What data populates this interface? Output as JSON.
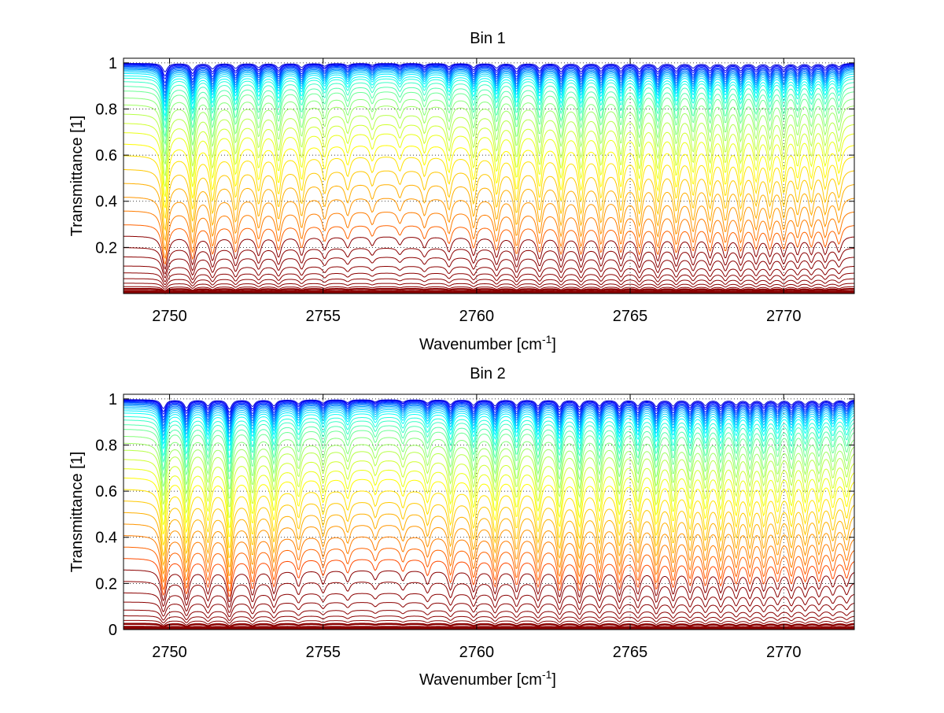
{
  "chart_data": [
    {
      "type": "line",
      "title": "Bin 1",
      "xlabel": "Wavenumber [cm",
      "xlabel_sup": "-1",
      "xlabel_tail": "]",
      "ylabel": "Transmittance [1]",
      "xlim": [
        2748.5,
        2772.3
      ],
      "ylim": [
        0,
        1.02
      ],
      "xticks": [
        2750,
        2755,
        2760,
        2765,
        2770
      ],
      "xtick_labels": [
        "2750",
        "2755",
        "2760",
        "2765",
        "2770"
      ],
      "yticks": [
        0.2,
        0.4,
        0.6,
        0.8,
        1
      ],
      "ytick_labels": [
        "0.2",
        "0.4",
        "0.6",
        "0.8",
        "1"
      ],
      "grid": "dotted",
      "series_count": 40,
      "colormap": "jet, dark red for strongest absorption to blue for weakest",
      "series_baselines": [
        0.005,
        0.01,
        0.02,
        0.03,
        0.045,
        0.065,
        0.09,
        0.12,
        0.16,
        0.2,
        0.25,
        0.3,
        0.36,
        0.42,
        0.48,
        0.54,
        0.6,
        0.65,
        0.7,
        0.74,
        0.78,
        0.82,
        0.85,
        0.88,
        0.9,
        0.92,
        0.935,
        0.945,
        0.955,
        0.962,
        0.968,
        0.973,
        0.977,
        0.981,
        0.985,
        0.988,
        0.991,
        0.994,
        0.996,
        0.998
      ],
      "absorption_lines": [
        {
          "x": 2749.85,
          "depth": 0.95
        },
        {
          "x": 2750.75,
          "depth": 0.75
        },
        {
          "x": 2751.4,
          "depth": 0.6
        },
        {
          "x": 2752.15,
          "depth": 0.55
        },
        {
          "x": 2752.9,
          "depth": 0.45
        },
        {
          "x": 2753.55,
          "depth": 0.5
        },
        {
          "x": 2754.3,
          "depth": 0.45
        },
        {
          "x": 2755.05,
          "depth": 0.3
        },
        {
          "x": 2755.8,
          "depth": 0.25
        },
        {
          "x": 2756.6,
          "depth": 0.2
        },
        {
          "x": 2757.5,
          "depth": 0.18
        },
        {
          "x": 2758.3,
          "depth": 0.25
        },
        {
          "x": 2759.1,
          "depth": 0.35
        },
        {
          "x": 2759.9,
          "depth": 0.45
        },
        {
          "x": 2760.65,
          "depth": 0.5
        },
        {
          "x": 2761.3,
          "depth": 0.6
        },
        {
          "x": 2762.05,
          "depth": 0.55
        },
        {
          "x": 2762.75,
          "depth": 0.6
        },
        {
          "x": 2763.4,
          "depth": 0.6
        },
        {
          "x": 2764.05,
          "depth": 0.55
        },
        {
          "x": 2764.7,
          "depth": 0.55
        },
        {
          "x": 2765.3,
          "depth": 0.6
        },
        {
          "x": 2765.9,
          "depth": 0.6
        },
        {
          "x": 2766.5,
          "depth": 0.55
        },
        {
          "x": 2767.05,
          "depth": 0.5
        },
        {
          "x": 2767.6,
          "depth": 0.5
        },
        {
          "x": 2768.1,
          "depth": 0.5
        },
        {
          "x": 2768.6,
          "depth": 0.5
        },
        {
          "x": 2769.1,
          "depth": 0.45
        },
        {
          "x": 2769.55,
          "depth": 0.45
        },
        {
          "x": 2770.0,
          "depth": 0.45
        },
        {
          "x": 2770.45,
          "depth": 0.4
        },
        {
          "x": 2770.9,
          "depth": 0.4
        },
        {
          "x": 2771.35,
          "depth": 0.4
        },
        {
          "x": 2771.8,
          "depth": 0.35
        }
      ]
    },
    {
      "type": "line",
      "title": "Bin 2",
      "xlabel": "Wavenumber [cm",
      "xlabel_sup": "-1",
      "xlabel_tail": "]",
      "ylabel": "Transmittance [1]",
      "xlim": [
        2748.5,
        2772.3
      ],
      "ylim": [
        0,
        1.02
      ],
      "xticks": [
        2750,
        2755,
        2760,
        2765,
        2770
      ],
      "xtick_labels": [
        "2750",
        "2755",
        "2760",
        "2765",
        "2770"
      ],
      "yticks": [
        0,
        0.2,
        0.4,
        0.6,
        0.8,
        1
      ],
      "ytick_labels": [
        "0",
        "0.2",
        "0.4",
        "0.6",
        "0.8",
        "1"
      ],
      "grid": "dotted",
      "series_count": 40,
      "colormap": "jet, dark red for strongest absorption to blue for weakest",
      "series_baselines": [
        0.005,
        0.012,
        0.025,
        0.04,
        0.06,
        0.085,
        0.12,
        0.16,
        0.21,
        0.26,
        0.31,
        0.36,
        0.41,
        0.46,
        0.51,
        0.56,
        0.61,
        0.66,
        0.7,
        0.74,
        0.78,
        0.81,
        0.84,
        0.87,
        0.89,
        0.91,
        0.925,
        0.94,
        0.95,
        0.958,
        0.965,
        0.971,
        0.976,
        0.98,
        0.984,
        0.987,
        0.99,
        0.993,
        0.995,
        0.997
      ],
      "absorption_lines": [
        {
          "x": 2749.8,
          "depth": 0.8
        },
        {
          "x": 2750.55,
          "depth": 0.75
        },
        {
          "x": 2751.25,
          "depth": 0.55
        },
        {
          "x": 2751.95,
          "depth": 0.85
        },
        {
          "x": 2752.7,
          "depth": 0.6
        },
        {
          "x": 2753.4,
          "depth": 0.55
        },
        {
          "x": 2754.2,
          "depth": 0.35
        },
        {
          "x": 2755.0,
          "depth": 0.3
        },
        {
          "x": 2755.8,
          "depth": 0.25
        },
        {
          "x": 2756.7,
          "depth": 0.2
        },
        {
          "x": 2757.6,
          "depth": 0.22
        },
        {
          "x": 2758.4,
          "depth": 0.3
        },
        {
          "x": 2759.15,
          "depth": 0.45
        },
        {
          "x": 2759.9,
          "depth": 0.5
        },
        {
          "x": 2760.6,
          "depth": 0.55
        },
        {
          "x": 2761.3,
          "depth": 0.5
        },
        {
          "x": 2762.0,
          "depth": 0.55
        },
        {
          "x": 2762.7,
          "depth": 0.65
        },
        {
          "x": 2763.35,
          "depth": 0.65
        },
        {
          "x": 2764.0,
          "depth": 0.55
        },
        {
          "x": 2764.65,
          "depth": 0.6
        },
        {
          "x": 2765.25,
          "depth": 0.55
        },
        {
          "x": 2765.85,
          "depth": 0.6
        },
        {
          "x": 2766.4,
          "depth": 0.55
        },
        {
          "x": 2766.95,
          "depth": 0.5
        },
        {
          "x": 2767.45,
          "depth": 0.5
        },
        {
          "x": 2767.95,
          "depth": 0.5
        },
        {
          "x": 2768.45,
          "depth": 0.45
        },
        {
          "x": 2768.9,
          "depth": 0.45
        },
        {
          "x": 2769.35,
          "depth": 0.45
        },
        {
          "x": 2769.8,
          "depth": 0.4
        },
        {
          "x": 2770.25,
          "depth": 0.45
        },
        {
          "x": 2770.7,
          "depth": 0.4
        },
        {
          "x": 2771.15,
          "depth": 0.4
        },
        {
          "x": 2771.6,
          "depth": 0.35
        },
        {
          "x": 2772.05,
          "depth": 0.35
        }
      ]
    }
  ]
}
